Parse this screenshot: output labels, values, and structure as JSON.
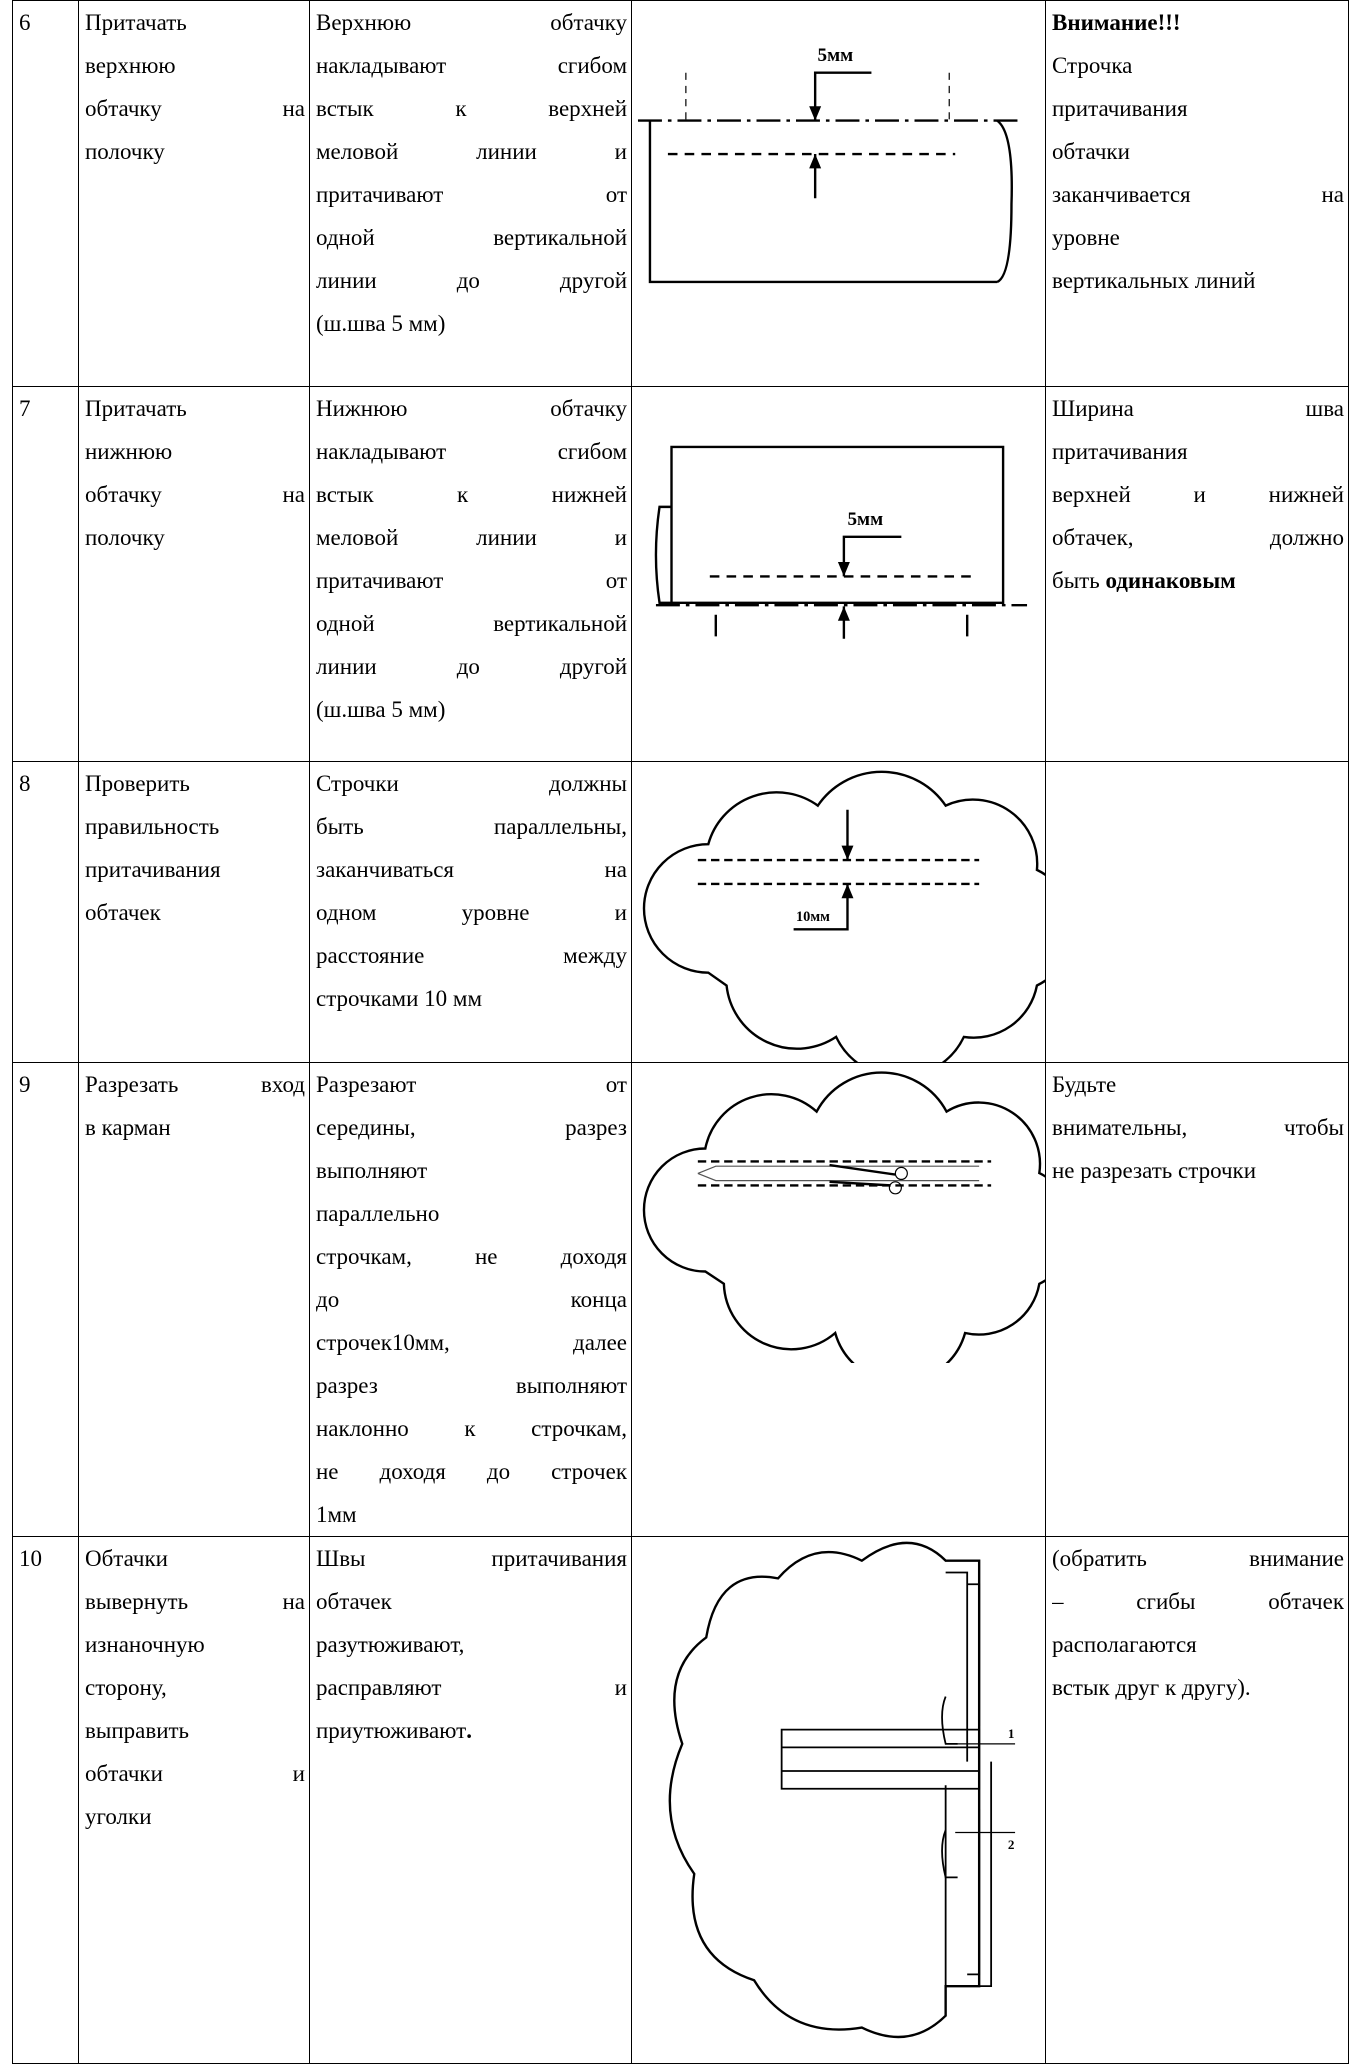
{
  "table": {
    "rows": [
      {
        "num": "6",
        "action": [
          "Притачать",
          "верхнюю",
          "обтачку на",
          "полочку"
        ],
        "description": [
          "Верхнюю обтачку",
          "накладывают сгибом",
          "встык к верхней",
          "меловой линии и",
          "притачивают от",
          "одной вертикальной",
          "линии до другой",
          "(ш.шва 5 мм)"
        ],
        "figure_labels": [
          "5мм"
        ],
        "note": [
          [
            {
              "text": "Внимание!!!",
              "bold": true
            }
          ],
          "Строчка",
          "притачивания",
          "обтачки",
          "заканчивается на",
          "уровне",
          "вертикальных линий"
        ]
      },
      {
        "num": "7",
        "action": [
          "Притачать",
          "нижнюю",
          "обтачку на",
          "полочку"
        ],
        "description": [
          "Нижнюю обтачку",
          "накладывают сгибом",
          "встык к нижней",
          "меловой линии и",
          "притачивают от",
          "одной вертикальной",
          "линии до другой",
          "(ш.шва 5 мм)"
        ],
        "figure_labels": [
          "5мм"
        ],
        "note": [
          "Ширина шва",
          "притачивания",
          "верхней и нижней",
          "обтачек, должно",
          [
            {
              "text": "быть "
            },
            {
              "text": "одинаковым",
              "bold": true
            }
          ]
        ]
      },
      {
        "num": "8",
        "action": [
          "Проверить",
          "правильность",
          "притачивания",
          "обтачек"
        ],
        "description": [
          "Строчки должны",
          "быть параллельны,",
          "заканчиваться на",
          "одном уровне и",
          "расстояние между",
          "строчками 10 мм"
        ],
        "figure_labels": [
          "10мм"
        ],
        "note": []
      },
      {
        "num": "9",
        "action": [
          "Разрезать вход",
          "в карман"
        ],
        "description": [
          "Разрезают от",
          "середины, разрез",
          "выполняют",
          "параллельно",
          "строчкам, не доходя",
          "до конца",
          "строчек10мм, далее",
          "разрез выполняют",
          "наклонно к строчкам,",
          "не доходя до строчек",
          "1мм"
        ],
        "figure_labels": [],
        "note": [
          "Будьте",
          "внимательны, чтобы",
          "не разрезать строчки"
        ]
      },
      {
        "num": "10",
        "action": [
          "Обтачки",
          "вывернуть на",
          "изнаночную",
          "сторону,",
          "выправить",
          "обтачки и",
          "уголки"
        ],
        "description": [
          "Швы притачивания",
          "обтачек",
          "разутюживают,",
          "расправляют и",
          [
            {
              "text": "приутюживают"
            },
            {
              "text": ".",
              "bold": true
            }
          ]
        ],
        "figure_labels": [
          "1",
          "2"
        ],
        "note": [
          "(обратить внимание",
          "– сгибы обтачек",
          "располагаются",
          "встык друг к другу)."
        ]
      }
    ]
  }
}
